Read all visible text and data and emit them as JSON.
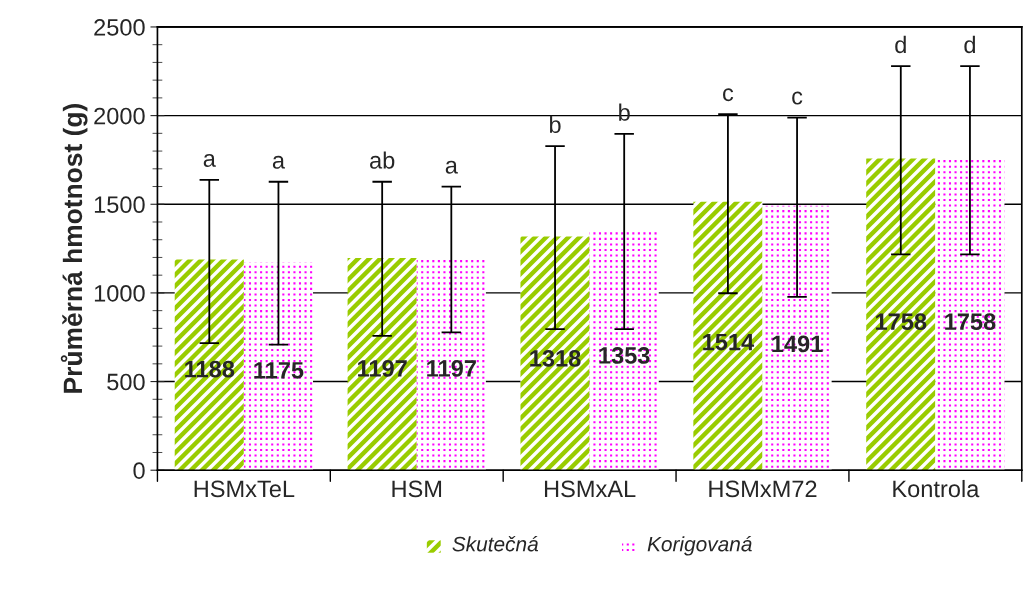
{
  "chart_data": {
    "type": "bar",
    "ylabel": "Průměrná hmotnost (g)",
    "categories": [
      "HSMxTeL",
      "HSM",
      "HSMxAL",
      "HSMxM72",
      "Kontrola"
    ],
    "series": [
      {
        "name": "Skutečná",
        "color": "#99cc00",
        "values": [
          1188,
          1197,
          1318,
          1514,
          1758
        ],
        "errors": [
          [
            717,
            1637
          ],
          [
            758,
            1627
          ],
          [
            796,
            1828
          ],
          [
            998,
            2008
          ],
          [
            1217,
            2279
          ]
        ]
      },
      {
        "name": "Korigovaná",
        "color": "#ff00ff",
        "values": [
          1175,
          1197,
          1353,
          1491,
          1758
        ],
        "errors": [
          [
            708,
            1627
          ],
          [
            777,
            1599
          ],
          [
            796,
            1897
          ],
          [
            978,
            1989
          ],
          [
            1217,
            2279
          ]
        ]
      }
    ],
    "annotations": [
      "a",
      "a",
      "ab",
      "a",
      "b",
      "b",
      "c",
      "c",
      "d",
      "d"
    ],
    "ylim": [
      0,
      2500
    ],
    "yticks": [
      0,
      500,
      1000,
      1500,
      2000,
      2500
    ],
    "grid": "y",
    "legend": "bottom",
    "data_labels": true
  }
}
